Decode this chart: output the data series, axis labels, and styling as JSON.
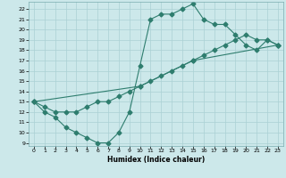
{
  "xlabel": "Humidex (Indice chaleur)",
  "xlim": [
    -0.5,
    23.5
  ],
  "ylim": [
    8.7,
    22.7
  ],
  "yticks": [
    9,
    10,
    11,
    12,
    13,
    14,
    15,
    16,
    17,
    18,
    19,
    20,
    21,
    22
  ],
  "xticks": [
    0,
    1,
    2,
    3,
    4,
    5,
    6,
    7,
    8,
    9,
    10,
    11,
    12,
    13,
    14,
    15,
    16,
    17,
    18,
    19,
    20,
    21,
    22,
    23
  ],
  "bg_color": "#cce8ea",
  "line_color": "#2e7d6e",
  "grid_color": "#aad0d4",
  "line1_x": [
    0,
    1,
    2,
    3,
    4,
    5,
    6,
    7,
    8,
    9,
    10,
    11,
    12,
    13,
    14,
    15,
    16,
    17,
    18,
    19,
    20,
    21,
    22,
    23
  ],
  "line1_y": [
    13,
    12,
    11.5,
    10.5,
    10,
    9.5,
    9,
    9,
    10,
    12,
    16.5,
    21,
    21.5,
    21.5,
    22,
    22.5,
    21,
    20.5,
    20.5,
    19.5,
    18.5,
    18,
    19,
    18.5
  ],
  "line2_x": [
    0,
    1,
    2,
    3,
    4,
    5,
    6,
    7,
    8,
    9,
    10,
    11,
    12,
    13,
    14,
    15,
    16,
    17,
    18,
    19,
    20,
    21,
    22,
    23
  ],
  "line2_y": [
    13,
    12.5,
    12,
    12,
    12,
    12.5,
    13,
    13,
    13.5,
    14,
    14.5,
    15,
    15.5,
    16,
    16.5,
    17,
    17.5,
    18,
    18.5,
    19,
    19.5,
    19,
    19,
    18.5
  ],
  "line3_x": [
    0,
    10,
    15,
    23
  ],
  "line3_y": [
    13,
    14.5,
    17,
    18.5
  ]
}
